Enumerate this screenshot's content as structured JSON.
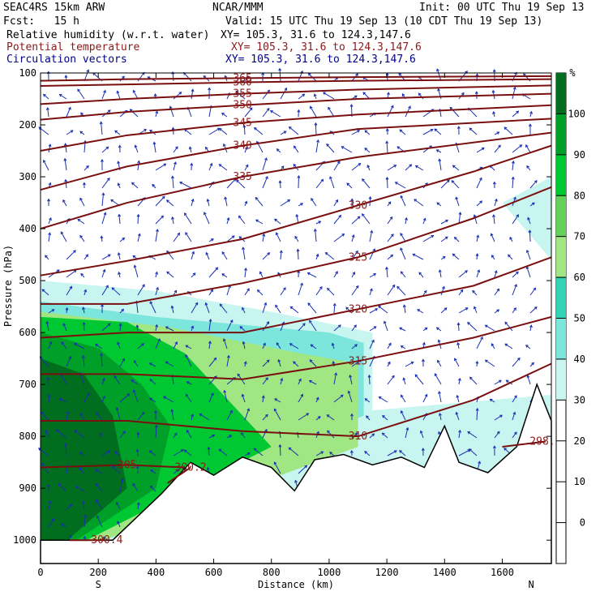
{
  "header": {
    "model": "SEAC4RS 15km ARW",
    "org": "NCAR/MMM",
    "init": "Init: 00 UTC Thu 19 Sep 13",
    "fcst": "Fcst:   15 h",
    "valid": "Valid: 15 UTC Thu 19 Sep 13 (10 CDT Thu 19 Sep 13)",
    "fields": [
      {
        "name": "Relative humidity (w.r.t. water)",
        "xy": "XY= 105.3, 31.6 to 124.3,147.6",
        "color": "#000000"
      },
      {
        "name": "Potential temperature",
        "xy": "XY= 105.3, 31.6 to 124.3,147.6",
        "color": "#8b1a1a"
      },
      {
        "name": "Circulation vectors",
        "xy": "XY= 105.3, 31.6 to 124.3,147.6",
        "color": "#00008b"
      }
    ]
  },
  "chart_data": {
    "type": "heatmap",
    "title": "Relative humidity (w.r.t. water)",
    "xlabel": "Distance (km)",
    "ylabel": "Pressure (hPa)",
    "xlim": [
      0,
      1770
    ],
    "ylim": [
      1045,
      100
    ],
    "xticks": [
      0,
      200,
      400,
      600,
      800,
      1000,
      1200,
      1400,
      1600
    ],
    "yticks": [
      100,
      200,
      300,
      400,
      500,
      600,
      700,
      800,
      900,
      1000
    ],
    "end_labels": {
      "left": "S",
      "right": "N"
    },
    "colorbar": {
      "unit": "%",
      "levels": [
        0,
        10,
        20,
        30,
        40,
        50,
        60,
        70,
        80,
        90,
        100
      ],
      "bands": [
        {
          "from": 30,
          "to": 40,
          "color": "#c8f5f0"
        },
        {
          "from": 40,
          "to": 50,
          "color": "#7de6dc"
        },
        {
          "from": 50,
          "to": 60,
          "color": "#32d2b4"
        },
        {
          "from": 60,
          "to": 70,
          "color": "#a0e682"
        },
        {
          "from": 70,
          "to": 80,
          "color": "#64d25a"
        },
        {
          "from": 80,
          "to": 90,
          "color": "#00c832"
        },
        {
          "from": 90,
          "to": 100,
          "color": "#00a028"
        },
        {
          "from": 100,
          "to": 110,
          "color": "#006e1e"
        }
      ]
    },
    "theta_contours": [
      {
        "label": "365",
        "points": [
          [
            0,
            115
          ],
          [
            300,
            112
          ],
          [
            700,
            110
          ],
          [
            1100,
            108
          ],
          [
            1770,
            106
          ]
        ]
      },
      {
        "label": "360",
        "points": [
          [
            0,
            125
          ],
          [
            300,
            122
          ],
          [
            700,
            118
          ],
          [
            1100,
            115
          ],
          [
            1770,
            112
          ]
        ]
      },
      {
        "label": "355",
        "points": [
          [
            0,
            160
          ],
          [
            300,
            150
          ],
          [
            700,
            140
          ],
          [
            1100,
            132
          ],
          [
            1770,
            124
          ]
        ]
      },
      {
        "label": "350",
        "points": [
          [
            0,
            190
          ],
          [
            300,
            175
          ],
          [
            700,
            162
          ],
          [
            1100,
            150
          ],
          [
            1770,
            140
          ]
        ]
      },
      {
        "label": "345",
        "points": [
          [
            0,
            250
          ],
          [
            300,
            220
          ],
          [
            700,
            196
          ],
          [
            1100,
            180
          ],
          [
            1770,
            162
          ]
        ]
      },
      {
        "label": "340",
        "points": [
          [
            0,
            325
          ],
          [
            300,
            280
          ],
          [
            700,
            240
          ],
          [
            1100,
            208
          ],
          [
            1770,
            188
          ]
        ]
      },
      {
        "label": "335",
        "points": [
          [
            0,
            400
          ],
          [
            300,
            350
          ],
          [
            700,
            300
          ],
          [
            1100,
            262
          ],
          [
            1770,
            215
          ]
        ]
      },
      {
        "label": "330",
        "points": [
          [
            0,
            490
          ],
          [
            300,
            462
          ],
          [
            700,
            420
          ],
          [
            1100,
            355
          ],
          [
            1500,
            290
          ],
          [
            1770,
            240
          ]
        ]
      },
      {
        "label": "325",
        "points": [
          [
            0,
            545
          ],
          [
            300,
            545
          ],
          [
            700,
            505
          ],
          [
            1100,
            455
          ],
          [
            1500,
            380
          ],
          [
            1770,
            320
          ]
        ]
      },
      {
        "label": "320",
        "points": [
          [
            0,
            610
          ],
          [
            300,
            600
          ],
          [
            700,
            600
          ],
          [
            1100,
            555
          ],
          [
            1500,
            510
          ],
          [
            1770,
            455
          ]
        ]
      },
      {
        "label": "315",
        "points": [
          [
            0,
            680
          ],
          [
            300,
            680
          ],
          [
            700,
            690
          ],
          [
            1100,
            655
          ],
          [
            1500,
            610
          ],
          [
            1770,
            570
          ]
        ]
      },
      {
        "label": "310",
        "points": [
          [
            0,
            770
          ],
          [
            300,
            770
          ],
          [
            700,
            790
          ],
          [
            1100,
            800
          ],
          [
            1500,
            730
          ],
          [
            1770,
            660
          ]
        ]
      },
      {
        "label": "305",
        "points": [
          [
            0,
            860
          ],
          [
            300,
            855
          ],
          [
            500,
            860
          ]
        ]
      },
      {
        "label": "300.2",
        "points": [
          [
            440,
            890
          ],
          [
            520,
            860
          ]
        ]
      },
      {
        "label": "300.4",
        "points": [
          [
            100,
            1000
          ],
          [
            230,
            1000
          ]
        ]
      },
      {
        "label": "298.1",
        "points": [
          [
            1600,
            820
          ],
          [
            1750,
            810
          ]
        ]
      }
    ],
    "terrain_pressure": [
      {
        "x": 0,
        "p": 1000
      },
      {
        "x": 250,
        "p": 1000
      },
      {
        "x": 420,
        "p": 910
      },
      {
        "x": 520,
        "p": 850
      },
      {
        "x": 600,
        "p": 875
      },
      {
        "x": 700,
        "p": 840
      },
      {
        "x": 800,
        "p": 860
      },
      {
        "x": 880,
        "p": 905
      },
      {
        "x": 950,
        "p": 845
      },
      {
        "x": 1050,
        "p": 835
      },
      {
        "x": 1150,
        "p": 855
      },
      {
        "x": 1250,
        "p": 840
      },
      {
        "x": 1330,
        "p": 860
      },
      {
        "x": 1400,
        "p": 780
      },
      {
        "x": 1450,
        "p": 850
      },
      {
        "x": 1550,
        "p": 870
      },
      {
        "x": 1650,
        "p": 820
      },
      {
        "x": 1720,
        "p": 700
      },
      {
        "x": 1770,
        "p": 770
      }
    ],
    "rh_regions": [
      {
        "band": 30,
        "points": [
          [
            0,
            500
          ],
          [
            400,
            520
          ],
          [
            800,
            560
          ],
          [
            1150,
            600
          ],
          [
            1150,
            750
          ],
          [
            1770,
            720
          ],
          [
            1770,
            460
          ],
          [
            1600,
            350
          ],
          [
            1770,
            300
          ],
          [
            1770,
            1045
          ],
          [
            0,
            1045
          ]
        ]
      },
      {
        "band": 40,
        "points": [
          [
            0,
            540
          ],
          [
            400,
            570
          ],
          [
            1000,
            600
          ],
          [
            1120,
            620
          ],
          [
            1120,
            760
          ],
          [
            0,
            1045
          ]
        ]
      },
      {
        "band": 60,
        "points": [
          [
            0,
            560
          ],
          [
            450,
            590
          ],
          [
            900,
            640
          ],
          [
            1100,
            660
          ],
          [
            1100,
            820
          ],
          [
            0,
            1045
          ]
        ]
      },
      {
        "band": 80,
        "points": [
          [
            0,
            570
          ],
          [
            300,
            580
          ],
          [
            500,
            640
          ],
          [
            650,
            730
          ],
          [
            800,
            820
          ],
          [
            0,
            1045
          ]
        ]
      },
      {
        "band": 90,
        "points": [
          [
            0,
            600
          ],
          [
            200,
            630
          ],
          [
            350,
            700
          ],
          [
            450,
            780
          ],
          [
            400,
            900
          ],
          [
            0,
            1045
          ]
        ]
      },
      {
        "band": 100,
        "points": [
          [
            0,
            650
          ],
          [
            150,
            680
          ],
          [
            250,
            760
          ],
          [
            300,
            900
          ],
          [
            0,
            1045
          ]
        ]
      }
    ]
  }
}
